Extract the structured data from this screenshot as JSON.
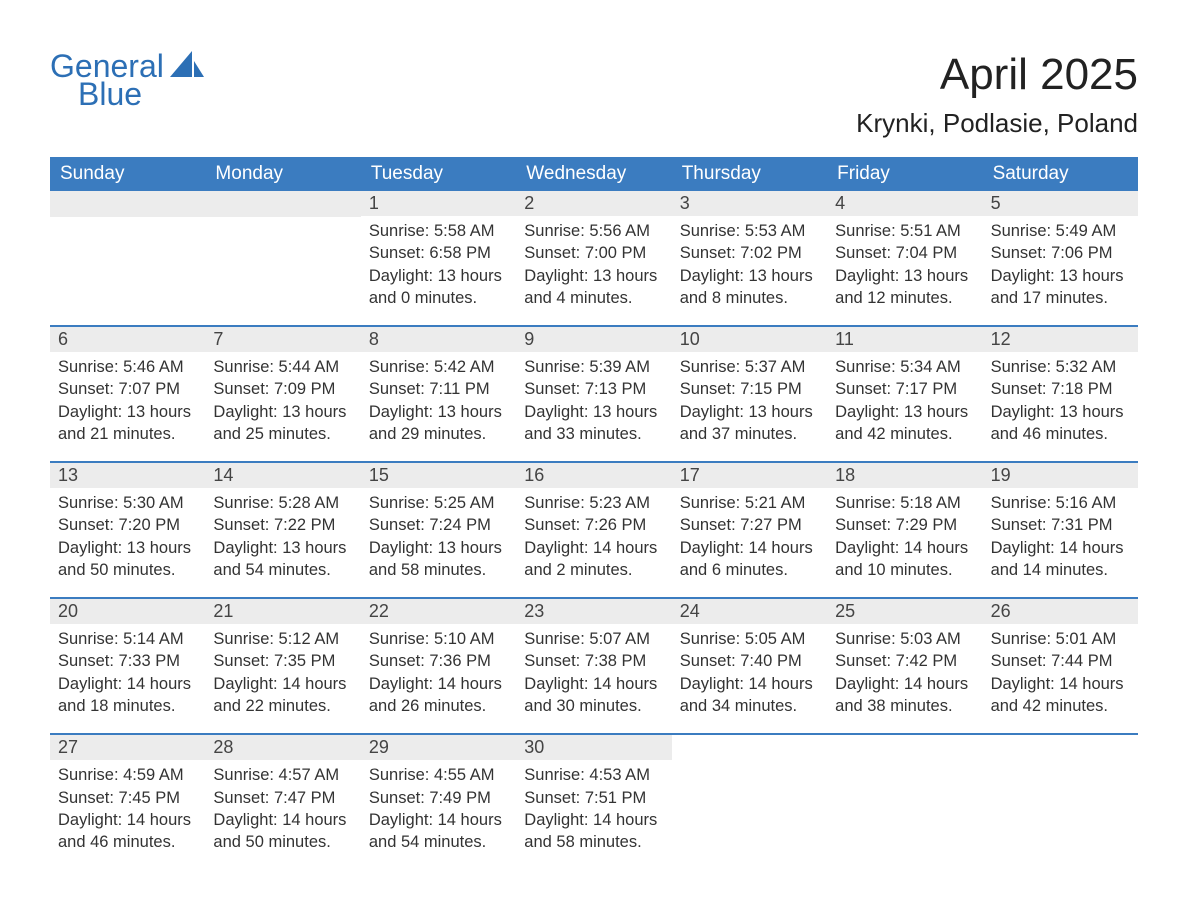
{
  "logo": {
    "general": "General",
    "blue": "Blue"
  },
  "title": "April 2025",
  "location": "Krynki, Podlasie, Poland",
  "colors": {
    "header_bg": "#3b7cc0",
    "header_text": "#ffffff",
    "strip_bg": "#ececec",
    "border": "#3b7cc0",
    "text": "#333333",
    "logo": "#2c6fb5"
  },
  "weekdays": [
    "Sunday",
    "Monday",
    "Tuesday",
    "Wednesday",
    "Thursday",
    "Friday",
    "Saturday"
  ],
  "weeks": [
    [
      {
        "blank": true
      },
      {
        "blank": true
      },
      {
        "num": "1",
        "sunrise": "Sunrise: 5:58 AM",
        "sunset": "Sunset: 6:58 PM",
        "dl1": "Daylight: 13 hours",
        "dl2": "and 0 minutes."
      },
      {
        "num": "2",
        "sunrise": "Sunrise: 5:56 AM",
        "sunset": "Sunset: 7:00 PM",
        "dl1": "Daylight: 13 hours",
        "dl2": "and 4 minutes."
      },
      {
        "num": "3",
        "sunrise": "Sunrise: 5:53 AM",
        "sunset": "Sunset: 7:02 PM",
        "dl1": "Daylight: 13 hours",
        "dl2": "and 8 minutes."
      },
      {
        "num": "4",
        "sunrise": "Sunrise: 5:51 AM",
        "sunset": "Sunset: 7:04 PM",
        "dl1": "Daylight: 13 hours",
        "dl2": "and 12 minutes."
      },
      {
        "num": "5",
        "sunrise": "Sunrise: 5:49 AM",
        "sunset": "Sunset: 7:06 PM",
        "dl1": "Daylight: 13 hours",
        "dl2": "and 17 minutes."
      }
    ],
    [
      {
        "num": "6",
        "sunrise": "Sunrise: 5:46 AM",
        "sunset": "Sunset: 7:07 PM",
        "dl1": "Daylight: 13 hours",
        "dl2": "and 21 minutes."
      },
      {
        "num": "7",
        "sunrise": "Sunrise: 5:44 AM",
        "sunset": "Sunset: 7:09 PM",
        "dl1": "Daylight: 13 hours",
        "dl2": "and 25 minutes."
      },
      {
        "num": "8",
        "sunrise": "Sunrise: 5:42 AM",
        "sunset": "Sunset: 7:11 PM",
        "dl1": "Daylight: 13 hours",
        "dl2": "and 29 minutes."
      },
      {
        "num": "9",
        "sunrise": "Sunrise: 5:39 AM",
        "sunset": "Sunset: 7:13 PM",
        "dl1": "Daylight: 13 hours",
        "dl2": "and 33 minutes."
      },
      {
        "num": "10",
        "sunrise": "Sunrise: 5:37 AM",
        "sunset": "Sunset: 7:15 PM",
        "dl1": "Daylight: 13 hours",
        "dl2": "and 37 minutes."
      },
      {
        "num": "11",
        "sunrise": "Sunrise: 5:34 AM",
        "sunset": "Sunset: 7:17 PM",
        "dl1": "Daylight: 13 hours",
        "dl2": "and 42 minutes."
      },
      {
        "num": "12",
        "sunrise": "Sunrise: 5:32 AM",
        "sunset": "Sunset: 7:18 PM",
        "dl1": "Daylight: 13 hours",
        "dl2": "and 46 minutes."
      }
    ],
    [
      {
        "num": "13",
        "sunrise": "Sunrise: 5:30 AM",
        "sunset": "Sunset: 7:20 PM",
        "dl1": "Daylight: 13 hours",
        "dl2": "and 50 minutes."
      },
      {
        "num": "14",
        "sunrise": "Sunrise: 5:28 AM",
        "sunset": "Sunset: 7:22 PM",
        "dl1": "Daylight: 13 hours",
        "dl2": "and 54 minutes."
      },
      {
        "num": "15",
        "sunrise": "Sunrise: 5:25 AM",
        "sunset": "Sunset: 7:24 PM",
        "dl1": "Daylight: 13 hours",
        "dl2": "and 58 minutes."
      },
      {
        "num": "16",
        "sunrise": "Sunrise: 5:23 AM",
        "sunset": "Sunset: 7:26 PM",
        "dl1": "Daylight: 14 hours",
        "dl2": "and 2 minutes."
      },
      {
        "num": "17",
        "sunrise": "Sunrise: 5:21 AM",
        "sunset": "Sunset: 7:27 PM",
        "dl1": "Daylight: 14 hours",
        "dl2": "and 6 minutes."
      },
      {
        "num": "18",
        "sunrise": "Sunrise: 5:18 AM",
        "sunset": "Sunset: 7:29 PM",
        "dl1": "Daylight: 14 hours",
        "dl2": "and 10 minutes."
      },
      {
        "num": "19",
        "sunrise": "Sunrise: 5:16 AM",
        "sunset": "Sunset: 7:31 PM",
        "dl1": "Daylight: 14 hours",
        "dl2": "and 14 minutes."
      }
    ],
    [
      {
        "num": "20",
        "sunrise": "Sunrise: 5:14 AM",
        "sunset": "Sunset: 7:33 PM",
        "dl1": "Daylight: 14 hours",
        "dl2": "and 18 minutes."
      },
      {
        "num": "21",
        "sunrise": "Sunrise: 5:12 AM",
        "sunset": "Sunset: 7:35 PM",
        "dl1": "Daylight: 14 hours",
        "dl2": "and 22 minutes."
      },
      {
        "num": "22",
        "sunrise": "Sunrise: 5:10 AM",
        "sunset": "Sunset: 7:36 PM",
        "dl1": "Daylight: 14 hours",
        "dl2": "and 26 minutes."
      },
      {
        "num": "23",
        "sunrise": "Sunrise: 5:07 AM",
        "sunset": "Sunset: 7:38 PM",
        "dl1": "Daylight: 14 hours",
        "dl2": "and 30 minutes."
      },
      {
        "num": "24",
        "sunrise": "Sunrise: 5:05 AM",
        "sunset": "Sunset: 7:40 PM",
        "dl1": "Daylight: 14 hours",
        "dl2": "and 34 minutes."
      },
      {
        "num": "25",
        "sunrise": "Sunrise: 5:03 AM",
        "sunset": "Sunset: 7:42 PM",
        "dl1": "Daylight: 14 hours",
        "dl2": "and 38 minutes."
      },
      {
        "num": "26",
        "sunrise": "Sunrise: 5:01 AM",
        "sunset": "Sunset: 7:44 PM",
        "dl1": "Daylight: 14 hours",
        "dl2": "and 42 minutes."
      }
    ],
    [
      {
        "num": "27",
        "sunrise": "Sunrise: 4:59 AM",
        "sunset": "Sunset: 7:45 PM",
        "dl1": "Daylight: 14 hours",
        "dl2": "and 46 minutes."
      },
      {
        "num": "28",
        "sunrise": "Sunrise: 4:57 AM",
        "sunset": "Sunset: 7:47 PM",
        "dl1": "Daylight: 14 hours",
        "dl2": "and 50 minutes."
      },
      {
        "num": "29",
        "sunrise": "Sunrise: 4:55 AM",
        "sunset": "Sunset: 7:49 PM",
        "dl1": "Daylight: 14 hours",
        "dl2": "and 54 minutes."
      },
      {
        "num": "30",
        "sunrise": "Sunrise: 4:53 AM",
        "sunset": "Sunset: 7:51 PM",
        "dl1": "Daylight: 14 hours",
        "dl2": "and 58 minutes."
      },
      {
        "blank": true,
        "noStrip": true
      },
      {
        "blank": true,
        "noStrip": true
      },
      {
        "blank": true,
        "noStrip": true
      }
    ]
  ]
}
